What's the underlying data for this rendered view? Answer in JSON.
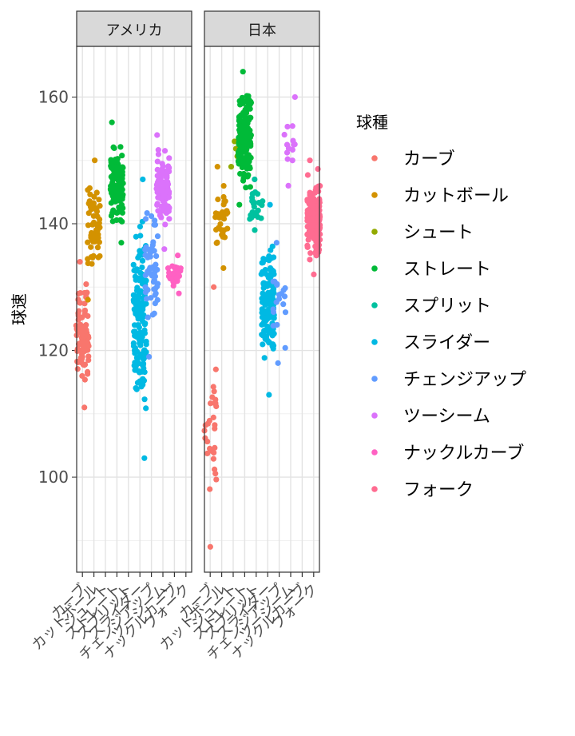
{
  "chart_data": {
    "type": "scatter",
    "facets": [
      "アメリカ",
      "日本"
    ],
    "ylabel": "球速",
    "ylim": [
      85,
      168
    ],
    "yticks": [
      100,
      120,
      140,
      160
    ],
    "legend_title": "球種",
    "legend_position": "right",
    "grid": true,
    "categories": [
      "カーブ",
      "カットボール",
      "シュート",
      "ストレート",
      "スプリット",
      "スライダー",
      "チェンジアップ",
      "ツーシーム",
      "ナックルカーブ",
      "フォーク"
    ],
    "colors": [
      "#F8766D",
      "#D39200",
      "#93AA00",
      "#00BA38",
      "#00C19F",
      "#00B9E3",
      "#619CFF",
      "#DB72FB",
      "#FF61C3",
      "#FF6C91"
    ],
    "series": [
      {
        "name": "カーブ",
        "facet": "アメリカ",
        "min": 111,
        "max": 134,
        "n": 85
      },
      {
        "name": "カットボール",
        "facet": "アメリカ",
        "min": 128,
        "max": 150,
        "n": 60
      },
      {
        "name": "ストレート",
        "facet": "アメリカ",
        "min": 137,
        "max": 156,
        "n": 120
      },
      {
        "name": "スライダー",
        "facet": "アメリカ",
        "min": 103,
        "max": 147,
        "n": 150
      },
      {
        "name": "チェンジアップ",
        "facet": "アメリカ",
        "min": 119,
        "max": 146,
        "n": 55
      },
      {
        "name": "ツーシーム",
        "facet": "アメリカ",
        "min": 136,
        "max": 154,
        "n": 90
      },
      {
        "name": "ナックルカーブ",
        "facet": "アメリカ",
        "min": 129,
        "max": 135,
        "n": 35
      },
      {
        "name": "カーブ",
        "facet": "日本",
        "min": 89,
        "max": 130,
        "n": 30
      },
      {
        "name": "カットボール",
        "facet": "日本",
        "min": 133,
        "max": 149,
        "n": 40
      },
      {
        "name": "シュート",
        "facet": "日本",
        "min": 149,
        "max": 153,
        "n": 4
      },
      {
        "name": "ストレート",
        "facet": "日本",
        "min": 143,
        "max": 164,
        "n": 200
      },
      {
        "name": "スプリット",
        "facet": "日本",
        "min": 139,
        "max": 147,
        "n": 25
      },
      {
        "name": "スライダー",
        "facet": "日本",
        "min": 113,
        "max": 143,
        "n": 140
      },
      {
        "name": "チェンジアップ",
        "facet": "日本",
        "min": 118,
        "max": 137,
        "n": 20
      },
      {
        "name": "ツーシーム",
        "facet": "日本",
        "min": 146,
        "max": 160,
        "n": 14
      },
      {
        "name": "フォーク",
        "facet": "日本",
        "min": 132,
        "max": 150,
        "n": 180
      }
    ]
  }
}
